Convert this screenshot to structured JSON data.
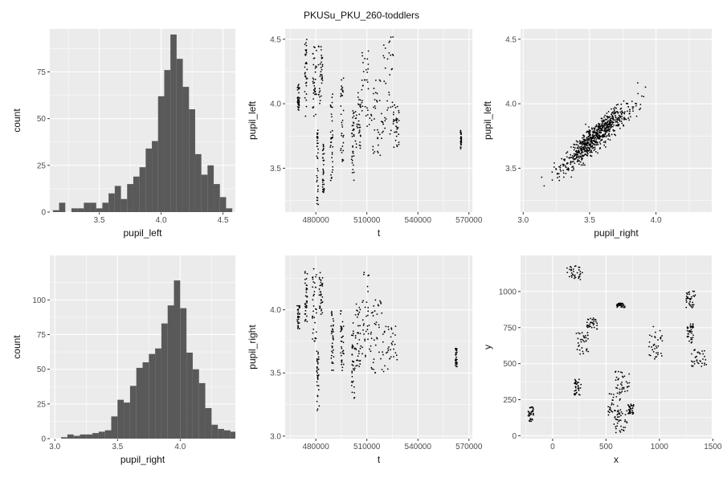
{
  "title": "PKUSu_PKU_260-toddlers",
  "colors": {
    "panel_bg": "#ebebeb",
    "grid": "#ffffff",
    "bar": "#595959",
    "point": "#000000"
  },
  "chart_data": [
    {
      "id": "hist-pupil-left",
      "type": "bar",
      "xlabel": "pupil_left",
      "ylabel": "count",
      "xlim": [
        3.1,
        4.6
      ],
      "ylim": [
        0,
        98
      ],
      "xticks": [
        3.5,
        4.0,
        4.5
      ],
      "yticks": [
        0,
        25,
        50,
        75
      ],
      "bin_width": 0.05,
      "categories": [
        3.15,
        3.2,
        3.25,
        3.3,
        3.35,
        3.4,
        3.45,
        3.5,
        3.55,
        3.6,
        3.65,
        3.7,
        3.75,
        3.8,
        3.85,
        3.9,
        3.95,
        4.0,
        4.05,
        4.1,
        4.15,
        4.2,
        4.25,
        4.3,
        4.35,
        4.4,
        4.45,
        4.5,
        4.55
      ],
      "values": [
        1,
        5,
        0,
        2,
        2,
        5,
        5,
        2,
        5,
        10,
        14,
        7,
        15,
        19,
        24,
        34,
        38,
        62,
        76,
        95,
        82,
        67,
        55,
        31,
        20,
        25,
        15,
        8,
        2
      ]
    },
    {
      "id": "scatter-t-pupil-left",
      "type": "scatter",
      "xlabel": "t",
      "ylabel": "pupil_left",
      "xlim": [
        462000,
        572000
      ],
      "ylim": [
        3.16,
        4.58
      ],
      "xticks": [
        480000,
        510000,
        540000,
        570000
      ],
      "yticks": [
        3.5,
        4.0,
        4.5
      ],
      "clusters": [
        {
          "x": [
            469000,
            470500
          ],
          "y": [
            3.95,
            4.15
          ]
        },
        {
          "x": [
            473500,
            475000
          ],
          "y": [
            3.9,
            4.5
          ]
        },
        {
          "x": [
            478000,
            480500
          ],
          "y": [
            3.9,
            4.45
          ]
        },
        {
          "x": [
            480500,
            481500
          ],
          "y": [
            3.2,
            3.8
          ]
        },
        {
          "x": [
            481500,
            484000
          ],
          "y": [
            4.0,
            4.45
          ]
        },
        {
          "x": [
            484000,
            485000
          ],
          "y": [
            3.3,
            3.7
          ]
        },
        {
          "x": [
            488500,
            490000
          ],
          "y": [
            3.4,
            4.1
          ]
        },
        {
          "x": [
            494500,
            496500
          ],
          "y": [
            3.55,
            4.2
          ]
        },
        {
          "x": [
            501000,
            502500
          ],
          "y": [
            3.4,
            3.95
          ]
        },
        {
          "x": [
            503000,
            506500
          ],
          "y": [
            3.65,
            4.1
          ]
        },
        {
          "x": [
            507000,
            513500
          ],
          "y": [
            3.8,
            4.45
          ]
        },
        {
          "x": [
            513500,
            519500
          ],
          "y": [
            3.6,
            4.25
          ]
        },
        {
          "x": [
            519500,
            525500
          ],
          "y": [
            3.75,
            4.55
          ]
        },
        {
          "x": [
            525500,
            529000
          ],
          "y": [
            3.65,
            4.0
          ]
        },
        {
          "x": [
            565000,
            565600
          ],
          "y": [
            3.65,
            3.8
          ]
        }
      ]
    },
    {
      "id": "scatter-pupil-right-left",
      "type": "scatter",
      "xlabel": "pupil_right",
      "ylabel": "pupil_left",
      "xlim": [
        2.98,
        4.42
      ],
      "ylim": [
        3.16,
        4.58
      ],
      "xticks": [
        3.0,
        3.5,
        4.0
      ],
      "yticks": [
        3.5,
        4.0,
        4.5
      ],
      "trend": {
        "slope": 0.9,
        "intercept": 0.55,
        "spread": 0.09,
        "x_range": [
          3.1,
          4.38
        ]
      }
    },
    {
      "id": "hist-pupil-right",
      "type": "bar",
      "xlabel": "pupil_right",
      "ylabel": "count",
      "xlim": [
        2.96,
        4.44
      ],
      "ylim": [
        0,
        132
      ],
      "xticks": [
        3.0,
        3.5,
        4.0
      ],
      "yticks": [
        0,
        25,
        50,
        75,
        100
      ],
      "bin_width": 0.05,
      "categories": [
        3.025,
        3.075,
        3.125,
        3.175,
        3.225,
        3.275,
        3.325,
        3.375,
        3.425,
        3.475,
        3.525,
        3.575,
        3.625,
        3.675,
        3.725,
        3.775,
        3.825,
        3.875,
        3.925,
        3.975,
        4.025,
        4.075,
        4.125,
        4.175,
        4.225,
        4.275,
        4.325,
        4.375,
        4.425
      ],
      "values": [
        0,
        1,
        3,
        2,
        3,
        3,
        4,
        5,
        6,
        16,
        28,
        26,
        38,
        51,
        55,
        61,
        65,
        83,
        96,
        114,
        94,
        62,
        50,
        40,
        22,
        10,
        7,
        6,
        5
      ]
    },
    {
      "id": "scatter-t-pupil-right",
      "type": "scatter",
      "xlabel": "t",
      "ylabel": "pupil_right",
      "xlim": [
        462000,
        572000
      ],
      "ylim": [
        2.98,
        4.43
      ],
      "xticks": [
        480000,
        510000,
        540000,
        570000
      ],
      "yticks": [
        3.0,
        3.5,
        4.0
      ],
      "clusters": [
        {
          "x": [
            469000,
            470500
          ],
          "y": [
            3.85,
            4.05
          ]
        },
        {
          "x": [
            473500,
            475000
          ],
          "y": [
            3.9,
            4.35
          ]
        },
        {
          "x": [
            478000,
            480500
          ],
          "y": [
            3.7,
            4.35
          ]
        },
        {
          "x": [
            480500,
            482000
          ],
          "y": [
            3.15,
            3.7
          ]
        },
        {
          "x": [
            482000,
            484000
          ],
          "y": [
            3.95,
            4.3
          ]
        },
        {
          "x": [
            489000,
            490500
          ],
          "y": [
            3.45,
            4.0
          ]
        },
        {
          "x": [
            494500,
            496500
          ],
          "y": [
            3.5,
            4.0
          ]
        },
        {
          "x": [
            501000,
            503000
          ],
          "y": [
            3.3,
            3.9
          ]
        },
        {
          "x": [
            503000,
            506500
          ],
          "y": [
            3.55,
            4.1
          ]
        },
        {
          "x": [
            507000,
            512500
          ],
          "y": [
            3.6,
            4.3
          ]
        },
        {
          "x": [
            512500,
            519500
          ],
          "y": [
            3.5,
            4.1
          ]
        },
        {
          "x": [
            519500,
            528000
          ],
          "y": [
            3.5,
            3.9
          ]
        },
        {
          "x": [
            562000,
            563000
          ],
          "y": [
            3.55,
            3.7
          ]
        }
      ]
    },
    {
      "id": "scatter-x-y",
      "type": "scatter",
      "xlabel": "x",
      "ylabel": "y",
      "xlim": [
        -300,
        1490
      ],
      "ylim": [
        -20,
        1250
      ],
      "xticks": [
        0,
        500,
        1000,
        1500
      ],
      "yticks": [
        0,
        250,
        500,
        750,
        1000
      ],
      "clusters": [
        {
          "x": [
            -230,
            -180
          ],
          "y": [
            100,
            200
          ]
        },
        {
          "x": [
            130,
            280
          ],
          "y": [
            1080,
            1180
          ]
        },
        {
          "x": [
            220,
            340
          ],
          "y": [
            560,
            720
          ]
        },
        {
          "x": [
            200,
            270
          ],
          "y": [
            280,
            400
          ]
        },
        {
          "x": [
            320,
            420
          ],
          "y": [
            740,
            820
          ]
        },
        {
          "x": [
            520,
            640
          ],
          "y": [
            100,
            300
          ]
        },
        {
          "x": [
            560,
            700
          ],
          "y": [
            20,
            180
          ]
        },
        {
          "x": [
            580,
            720
          ],
          "y": [
            300,
            450
          ]
        },
        {
          "x": [
            600,
            680
          ],
          "y": [
            890,
            920
          ]
        },
        {
          "x": [
            700,
            760
          ],
          "y": [
            150,
            220
          ]
        },
        {
          "x": [
            900,
            1030
          ],
          "y": [
            520,
            760
          ]
        },
        {
          "x": [
            1250,
            1340
          ],
          "y": [
            880,
            1010
          ]
        },
        {
          "x": [
            1260,
            1320
          ],
          "y": [
            640,
            780
          ]
        },
        {
          "x": [
            1300,
            1440
          ],
          "y": [
            480,
            600
          ]
        }
      ]
    }
  ]
}
